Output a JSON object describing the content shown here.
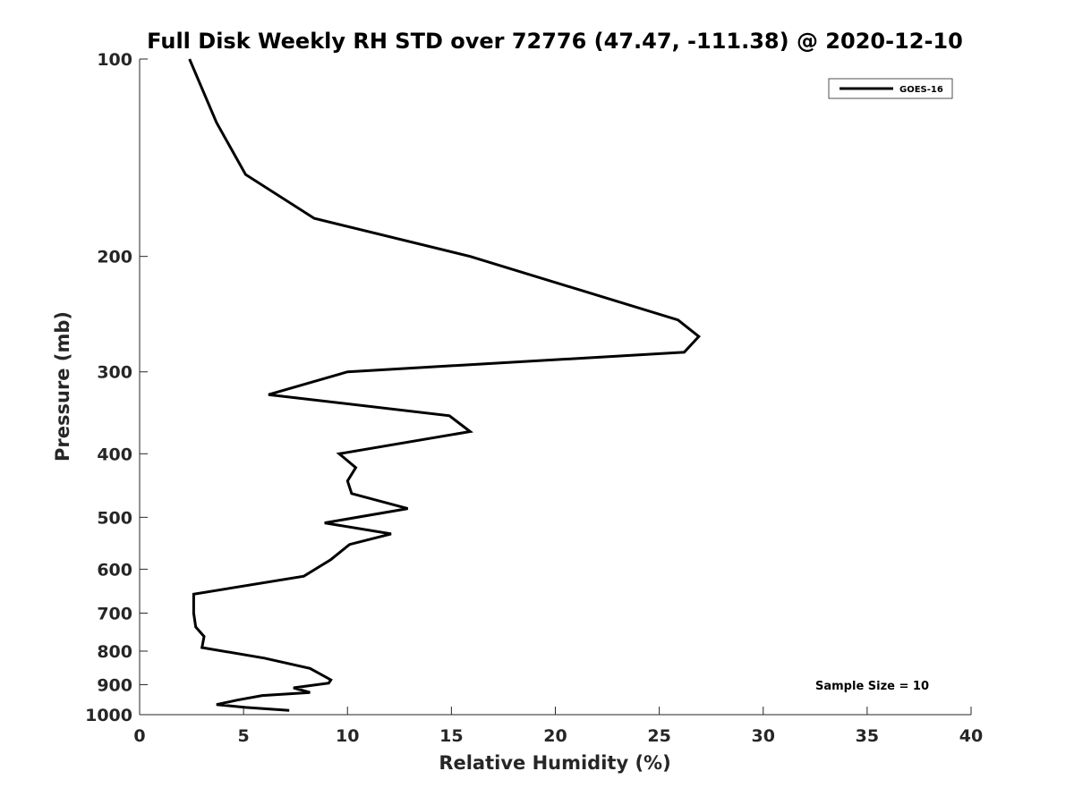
{
  "chart_data": {
    "type": "line",
    "title": "Full Disk Weekly RH STD over 72776 (47.47, -111.38) @ 2020-12-10",
    "xlabel": "Relative Humidity (%)",
    "ylabel": "Pressure (mb)",
    "xlim": [
      0,
      40
    ],
    "ylim": [
      100,
      1000
    ],
    "y_scale": "log",
    "y_direction": "reversed",
    "grid": false,
    "legend_position": "top-right",
    "x_ticks": [
      "0",
      "5",
      "10",
      "15",
      "20",
      "25",
      "30",
      "35",
      "40"
    ],
    "y_ticks": [
      "100",
      "200",
      "300",
      "400",
      "500",
      "600",
      "700",
      "800",
      "900",
      "1000"
    ],
    "annotation": "Sample Size = 10",
    "series": [
      {
        "name": "GOES-16",
        "color": "#000000",
        "points": [
          {
            "x": 2.4,
            "y": 100
          },
          {
            "x": 3.7,
            "y": 125
          },
          {
            "x": 5.1,
            "y": 150
          },
          {
            "x": 8.4,
            "y": 175
          },
          {
            "x": 15.9,
            "y": 200
          },
          {
            "x": 25.9,
            "y": 250
          },
          {
            "x": 26.9,
            "y": 265
          },
          {
            "x": 26.2,
            "y": 280
          },
          {
            "x": 10.0,
            "y": 300
          },
          {
            "x": 6.2,
            "y": 325
          },
          {
            "x": 14.9,
            "y": 350
          },
          {
            "x": 15.9,
            "y": 370
          },
          {
            "x": 9.6,
            "y": 400
          },
          {
            "x": 10.4,
            "y": 420
          },
          {
            "x": 10.0,
            "y": 440
          },
          {
            "x": 10.2,
            "y": 460
          },
          {
            "x": 12.9,
            "y": 485
          },
          {
            "x": 8.9,
            "y": 510
          },
          {
            "x": 12.1,
            "y": 530
          },
          {
            "x": 10.1,
            "y": 550
          },
          {
            "x": 9.2,
            "y": 580
          },
          {
            "x": 7.9,
            "y": 615
          },
          {
            "x": 2.6,
            "y": 655
          },
          {
            "x": 2.6,
            "y": 700
          },
          {
            "x": 2.7,
            "y": 735
          },
          {
            "x": 3.1,
            "y": 760
          },
          {
            "x": 3.0,
            "y": 790
          },
          {
            "x": 6.0,
            "y": 820
          },
          {
            "x": 8.2,
            "y": 850
          },
          {
            "x": 9.2,
            "y": 885
          },
          {
            "x": 9.1,
            "y": 895
          },
          {
            "x": 7.4,
            "y": 910
          },
          {
            "x": 8.2,
            "y": 925
          },
          {
            "x": 5.9,
            "y": 935
          },
          {
            "x": 4.7,
            "y": 950
          },
          {
            "x": 3.7,
            "y": 965
          },
          {
            "x": 5.1,
            "y": 975
          },
          {
            "x": 7.2,
            "y": 985
          }
        ]
      }
    ]
  }
}
